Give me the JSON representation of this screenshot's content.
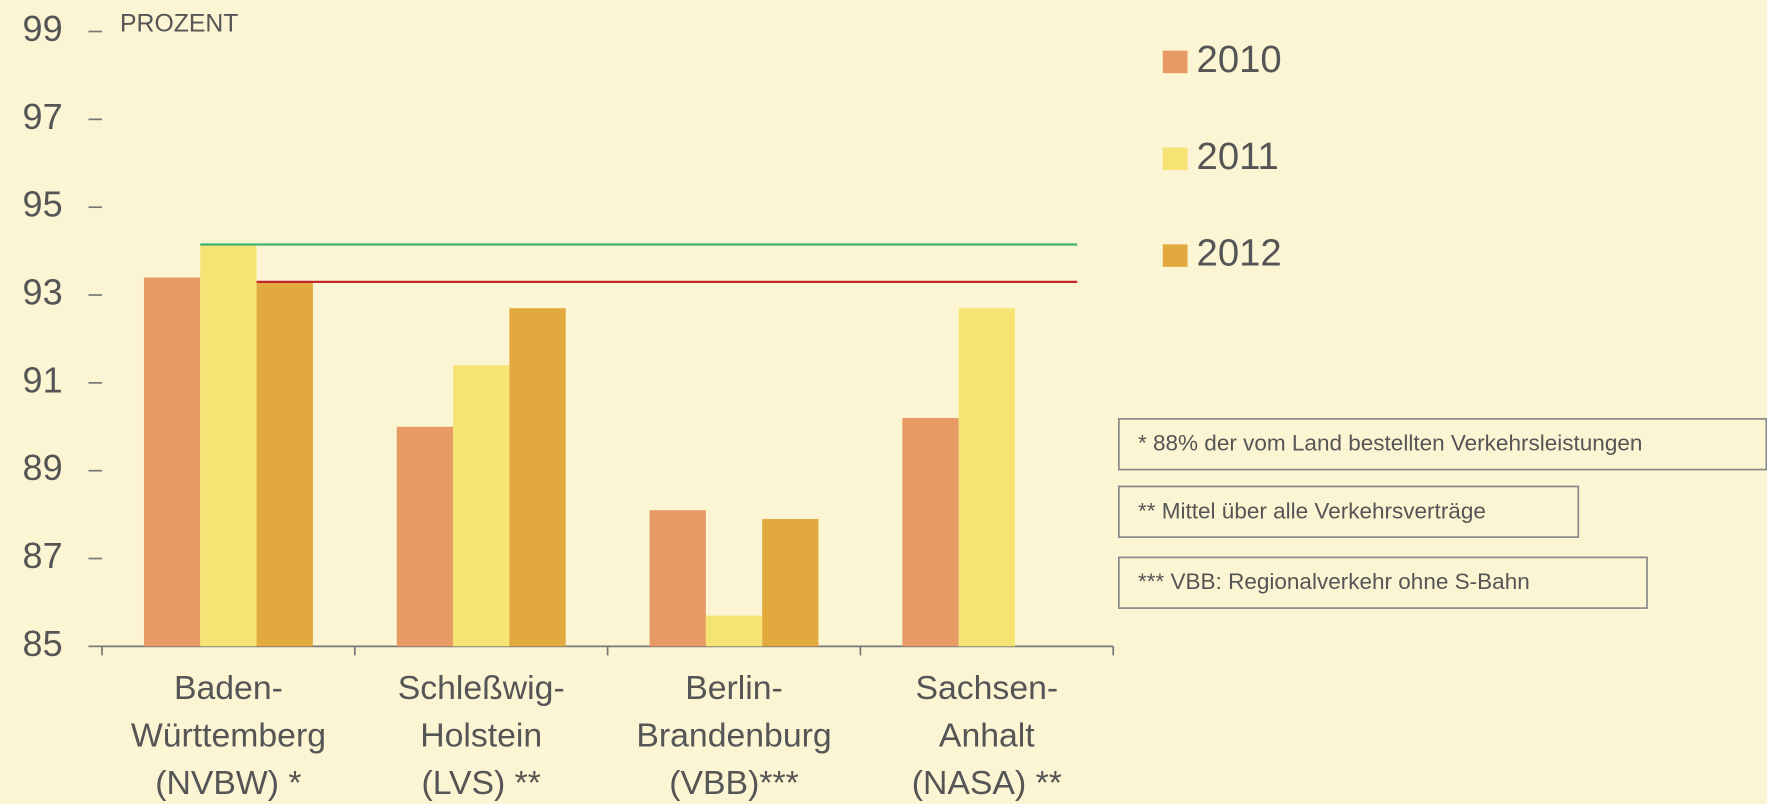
{
  "chart_data": {
    "type": "bar",
    "y_label": "PROZENT",
    "categories": [
      [
        "Baden-",
        "Württemberg",
        "(NVBW) *"
      ],
      [
        "Schleßwig-",
        "Holstein",
        "(LVS) **"
      ],
      [
        "Berlin-",
        "Brandenburg",
        "(VBB)***"
      ],
      [
        "Sachsen-",
        "Anhalt",
        "(NASA) **"
      ]
    ],
    "series": [
      {
        "name": "2010",
        "color": "#e89a65",
        "values": [
          93.4,
          90.0,
          88.1,
          90.2
        ]
      },
      {
        "name": "2011",
        "color": "#f5e473",
        "values": [
          94.15,
          91.4,
          85.7,
          92.7
        ]
      },
      {
        "name": "2012",
        "color": "#e2a93f",
        "values": [
          93.3,
          92.7,
          87.9,
          null
        ]
      }
    ],
    "reference_lines": [
      {
        "value": 94.15,
        "color": "#3cb371"
      },
      {
        "value": 93.3,
        "color": "#c0272d"
      }
    ],
    "ylim": [
      85,
      99
    ],
    "yticks": [
      85,
      87,
      89,
      91,
      93,
      95,
      97,
      99
    ],
    "legend": "top-right",
    "notes": [
      "* 88% der vom Land bestellten Verkehrsleistungen",
      "** Mittel über alle Verkehrsverträge",
      "*** VBB: Regionalverkehr ohne S-Bahn"
    ]
  }
}
